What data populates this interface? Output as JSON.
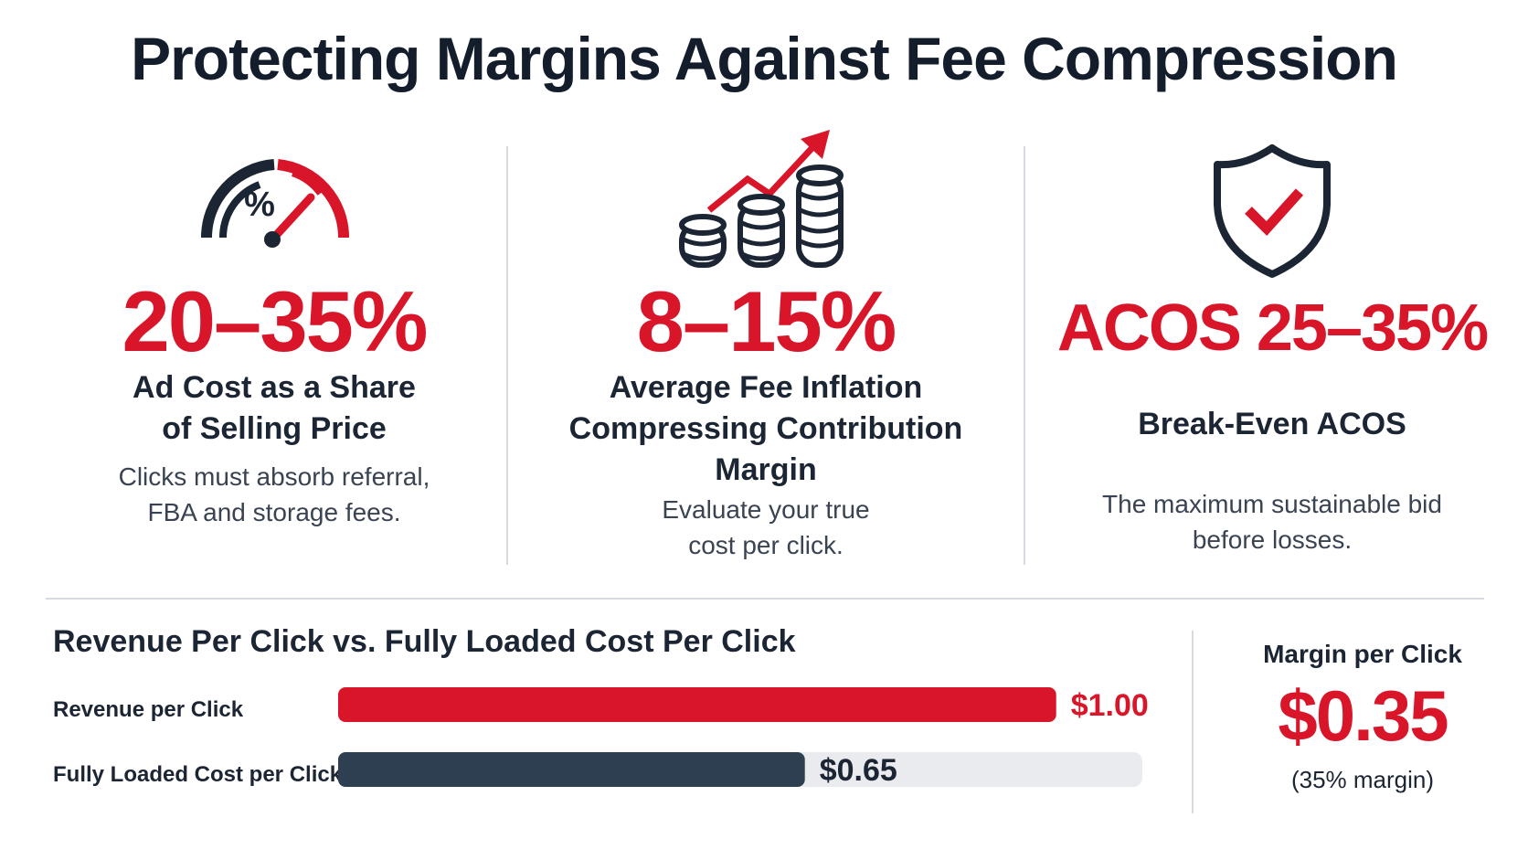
{
  "title": "Protecting Margins Against Fee Compression",
  "columns": [
    {
      "icon": "gauge-icon",
      "icon_text": "%",
      "stat": "20–35%",
      "label_line1": "Ad Cost as a Share",
      "label_line2": "of Selling Price",
      "desc_line1": "Clicks must absorb referral,",
      "desc_line2": "FBA and storage fees."
    },
    {
      "icon": "coins-rising-icon",
      "stat": "8–15%",
      "label_line1": "Average Fee Inflation",
      "label_line2": "Compressing Contribution Margin",
      "desc_line1": "Evaluate your true",
      "desc_line2": "cost per click."
    },
    {
      "icon": "shield-check-icon",
      "stat": "ACOS 25–35%",
      "label_line1": "Break-Even ACOS",
      "desc_line1": "The maximum sustainable bid",
      "desc_line2": "before losses."
    }
  ],
  "chart_data": {
    "type": "bar",
    "orientation": "horizontal",
    "title": "Revenue Per Click vs. Fully Loaded Cost Per Click",
    "categories": [
      "Revenue per Click",
      "Fully Loaded Cost per Click"
    ],
    "values": [
      1.0,
      0.65
    ],
    "value_labels": [
      "$1.00",
      "$0.65"
    ],
    "xlim": [
      0,
      1.12
    ],
    "colors": [
      "#d9152a",
      "#2e3f52"
    ],
    "track_color": "#e9ebee"
  },
  "margin_panel": {
    "title": "Margin per Click",
    "value": "$0.35",
    "note": "(35% margin)"
  },
  "colors": {
    "accent": "#d9152a",
    "dark": "#1c2533",
    "slate": "#2e3f52"
  }
}
